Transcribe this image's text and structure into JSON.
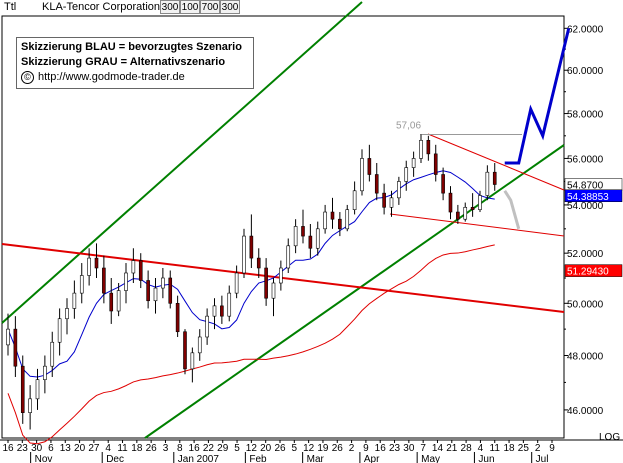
{
  "header": {
    "ticker": "Ttl",
    "title": "KLA-Tencor Corporation",
    "buttons": [
      "300",
      "100",
      "700",
      "300"
    ]
  },
  "legend": {
    "line1": "Skizzierung BLAU = bevorzugtes Szenario",
    "line2": "Skizzierung GRAU = Alternativszenario",
    "link": "http://www.godmode-trader.de",
    "copyright_symbol": "©"
  },
  "chart_data": {
    "type": "candlestick",
    "y_ticks": [
      "62.0000",
      "60.0000",
      "58.0000",
      "56.0000",
      "54.0000",
      "52.0000",
      "50.0000",
      "48.0000",
      "46.0000"
    ],
    "ylim": [
      45.0,
      62.6
    ],
    "x_day_labels": [
      "16",
      "23",
      "30",
      "6",
      "13",
      "20",
      "27",
      "4",
      "11",
      "18",
      "26",
      "3",
      "8",
      "16",
      "22",
      "29",
      "5",
      "12",
      "20",
      "26",
      "5",
      "12",
      "19",
      "26",
      "2",
      "9",
      "16",
      "23",
      "30",
      "7",
      "14",
      "21",
      "28",
      "4",
      "11",
      "18",
      "25",
      "2",
      "9"
    ],
    "x_month_labels": [
      "Nov",
      "Dec",
      "Jan 2007",
      "Feb",
      "Mar",
      "Apr",
      "May",
      "Jun",
      "Jul"
    ],
    "axis_unit_label": "LOG",
    "annotation_high": "57,06",
    "last_values": [
      {
        "label": "54.8700",
        "value": 54.87,
        "bg": "#ffffff",
        "fg": "#000000"
      },
      {
        "label": "54.38853",
        "value": 54.38853,
        "bg": "#0000ff",
        "fg": "#ffffff"
      },
      {
        "label": "51.29430",
        "value": 51.2943,
        "bg": "#ff0000",
        "fg": "#ffffff"
      }
    ],
    "series": [
      {
        "type": "candlestick",
        "values": [
          [
            48.4,
            49.6,
            48.0,
            49.0
          ],
          [
            49.0,
            49.5,
            47.2,
            47.6
          ],
          [
            47.6,
            48.0,
            45.5,
            45.9
          ],
          [
            45.9,
            46.9,
            45.3,
            46.4
          ],
          [
            46.4,
            47.5,
            46.0,
            47.1
          ],
          [
            47.1,
            48.0,
            46.6,
            47.6
          ],
          [
            47.6,
            48.9,
            47.2,
            48.5
          ],
          [
            48.5,
            49.8,
            48.0,
            49.4
          ],
          [
            49.4,
            50.2,
            48.8,
            49.8
          ],
          [
            49.8,
            50.9,
            49.4,
            50.4
          ],
          [
            50.4,
            51.6,
            50.0,
            51.1
          ],
          [
            51.1,
            52.2,
            50.7,
            51.8
          ],
          [
            51.8,
            52.4,
            51.0,
            51.4
          ],
          [
            51.4,
            51.9,
            50.0,
            50.4
          ],
          [
            50.4,
            51.0,
            49.2,
            49.7
          ],
          [
            49.7,
            50.8,
            49.5,
            50.5
          ],
          [
            50.5,
            51.6,
            50.0,
            51.2
          ],
          [
            51.2,
            52.2,
            50.8,
            51.7
          ],
          [
            51.7,
            52.0,
            50.6,
            50.9
          ],
          [
            50.9,
            51.3,
            49.8,
            50.1
          ],
          [
            50.1,
            51.0,
            49.6,
            50.6
          ],
          [
            50.6,
            51.4,
            50.2,
            51.0
          ],
          [
            51.0,
            51.3,
            49.8,
            50.0
          ],
          [
            50.0,
            50.3,
            48.7,
            48.9
          ],
          [
            48.9,
            49.0,
            47.3,
            47.5
          ],
          [
            47.5,
            48.3,
            47.0,
            48.1
          ],
          [
            48.1,
            49.0,
            47.8,
            48.7
          ],
          [
            48.7,
            49.8,
            48.4,
            49.5
          ],
          [
            49.5,
            50.2,
            49.0,
            49.9
          ],
          [
            49.9,
            50.3,
            49.2,
            49.5
          ],
          [
            49.5,
            50.7,
            49.3,
            50.4
          ],
          [
            50.4,
            51.5,
            50.2,
            51.2
          ],
          [
            51.2,
            53.0,
            51.0,
            52.7
          ],
          [
            52.7,
            53.6,
            51.4,
            51.8
          ],
          [
            51.8,
            52.2,
            51.0,
            51.4
          ],
          [
            51.4,
            51.8,
            49.9,
            50.2
          ],
          [
            50.2,
            51.0,
            49.5,
            50.8
          ],
          [
            50.8,
            51.7,
            50.5,
            51.4
          ],
          [
            51.4,
            52.6,
            51.2,
            52.3
          ],
          [
            52.3,
            53.4,
            52.0,
            53.1
          ],
          [
            53.1,
            53.8,
            52.4,
            52.7
          ],
          [
            52.7,
            53.2,
            51.8,
            52.2
          ],
          [
            52.2,
            53.3,
            51.9,
            53.0
          ],
          [
            53.0,
            54.0,
            52.8,
            53.7
          ],
          [
            53.7,
            54.3,
            53.0,
            53.4
          ],
          [
            53.4,
            53.7,
            52.7,
            53.0
          ],
          [
            53.0,
            54.0,
            52.9,
            53.8
          ],
          [
            53.8,
            55.0,
            53.6,
            54.6
          ],
          [
            54.6,
            56.4,
            54.4,
            56.0
          ],
          [
            56.0,
            56.6,
            55.0,
            55.3
          ],
          [
            55.3,
            55.8,
            54.2,
            54.5
          ],
          [
            54.5,
            54.9,
            53.6,
            53.9
          ],
          [
            53.9,
            54.6,
            53.5,
            54.3
          ],
          [
            54.3,
            55.2,
            54.0,
            55.0
          ],
          [
            55.0,
            55.9,
            54.6,
            55.6
          ],
          [
            55.6,
            56.3,
            55.2,
            56.0
          ],
          [
            56.0,
            57.06,
            55.8,
            56.8
          ],
          [
            56.8,
            57.0,
            55.9,
            56.2
          ],
          [
            56.2,
            56.6,
            55.0,
            55.3
          ],
          [
            55.3,
            55.6,
            54.2,
            54.5
          ],
          [
            54.5,
            54.8,
            53.4,
            53.7
          ],
          [
            53.7,
            54.0,
            53.2,
            53.4
          ],
          [
            53.4,
            54.1,
            53.3,
            53.9
          ],
          [
            53.9,
            54.5,
            53.5,
            53.8
          ],
          [
            53.8,
            54.6,
            53.7,
            54.4
          ],
          [
            54.4,
            55.7,
            54.2,
            55.4
          ],
          [
            55.4,
            55.8,
            54.6,
            54.87
          ]
        ]
      },
      {
        "type": "projection",
        "name": "Skizzierung BLAU",
        "color": "#0000cc",
        "values": [
          55.8,
          55.8,
          58.2,
          57.0,
          62.0
        ]
      },
      {
        "type": "projection",
        "name": "Skizzierung GRAU",
        "color": "#c0c0c0",
        "values": [
          54.6,
          54.2,
          53.0
        ]
      }
    ]
  }
}
